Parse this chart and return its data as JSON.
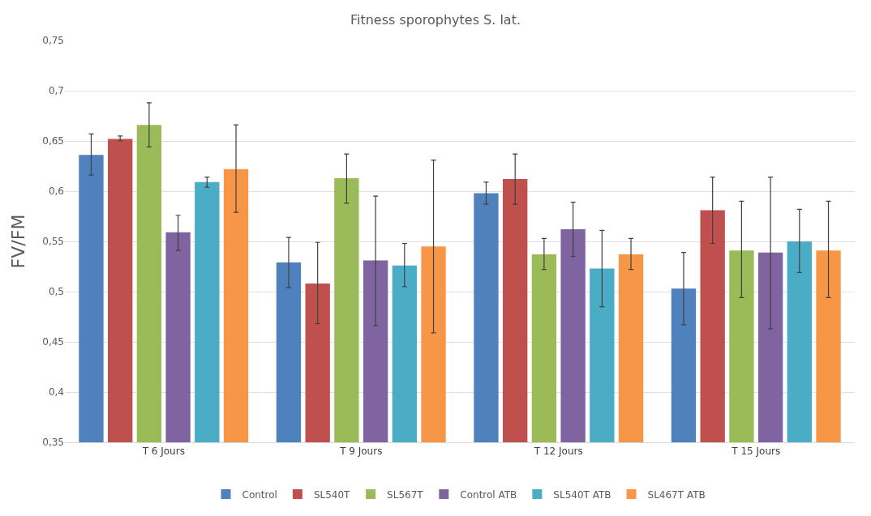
{
  "chart_data": {
    "type": "bar",
    "title": "Fitness sporophytes S. lat.",
    "ylabel": "FV/FM",
    "categories": [
      "T 6 Jours",
      "T 9 Jours",
      "T 12 Jours",
      "T 15 Jours"
    ],
    "series": [
      {
        "name": "Control",
        "color": "#4f81bd",
        "values": [
          0.636,
          0.529,
          0.598,
          0.503
        ],
        "errors": [
          [
            0.616,
            0.657
          ],
          [
            0.504,
            0.554
          ],
          [
            0.587,
            0.609
          ],
          [
            0.467,
            0.539
          ]
        ]
      },
      {
        "name": "SL540T",
        "color": "#c0504d",
        "values": [
          0.652,
          0.508,
          0.612,
          0.581
        ],
        "errors": [
          [
            0.65,
            0.655
          ],
          [
            0.468,
            0.549
          ],
          [
            0.587,
            0.637
          ],
          [
            0.548,
            0.614
          ]
        ]
      },
      {
        "name": "SL567T",
        "color": "#9bbb59",
        "values": [
          0.666,
          0.613,
          0.537,
          0.541
        ],
        "errors": [
          [
            0.644,
            0.688
          ],
          [
            0.588,
            0.637
          ],
          [
            0.522,
            0.553
          ],
          [
            0.494,
            0.59
          ]
        ]
      },
      {
        "name": "Control ATB",
        "color": "#8064a2",
        "values": [
          0.559,
          0.531,
          0.562,
          0.539
        ],
        "errors": [
          [
            0.541,
            0.576
          ],
          [
            0.466,
            0.595
          ],
          [
            0.535,
            0.589
          ],
          [
            0.463,
            0.614
          ]
        ]
      },
      {
        "name": "SL540T ATB",
        "color": "#4bacc6",
        "values": [
          0.609,
          0.526,
          0.523,
          0.55
        ],
        "errors": [
          [
            0.604,
            0.614
          ],
          [
            0.505,
            0.548
          ],
          [
            0.485,
            0.561
          ],
          [
            0.519,
            0.582
          ]
        ]
      },
      {
        "name": "SL467T ATB",
        "color": "#f79646",
        "values": [
          0.622,
          0.545,
          0.537,
          0.541
        ],
        "errors": [
          [
            0.579,
            0.666
          ],
          [
            0.459,
            0.631
          ],
          [
            0.522,
            0.553
          ],
          [
            0.494,
            0.59
          ]
        ]
      }
    ],
    "ylim": [
      0.35,
      0.75
    ],
    "yticks": [
      {
        "value": 0.35,
        "label": "0,35"
      },
      {
        "value": 0.4,
        "label": "0,4"
      },
      {
        "value": 0.45,
        "label": "0,45"
      },
      {
        "value": 0.5,
        "label": "0,5"
      },
      {
        "value": 0.55,
        "label": "0,55"
      },
      {
        "value": 0.6,
        "label": "0,6"
      },
      {
        "value": 0.65,
        "label": "0,65"
      },
      {
        "value": 0.7,
        "label": "0,7"
      },
      {
        "value": 0.75,
        "label": "0,75"
      }
    ],
    "grid": "y",
    "legend": "bottom"
  }
}
